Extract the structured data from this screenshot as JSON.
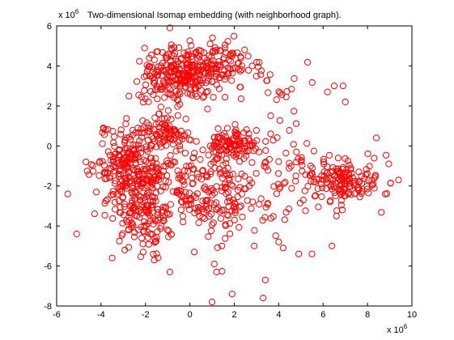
{
  "chart_data": {
    "type": "scatter",
    "title": "Two-dimensional Isomap embedding (with neighborhood graph).",
    "xlabel": "",
    "ylabel": "",
    "x_multiplier": "x 10",
    "y_multiplier": "x 10",
    "multiplier_exponent": "6",
    "xlim": [
      -6,
      10
    ],
    "ylim": [
      -8,
      6
    ],
    "x_ticks": [
      "-6",
      "-4",
      "-2",
      "0",
      "2",
      "4",
      "6",
      "8",
      "10"
    ],
    "y_ticks": [
      "-8",
      "-6",
      "-4",
      "-2",
      "0",
      "2",
      "4",
      "6"
    ],
    "grid": false,
    "legend": "none",
    "marker": "circle-open",
    "color": "#ff0000",
    "clusters": [
      {
        "cx": -0.5,
        "cy": 3.5,
        "sx": 0.9,
        "sy": 0.75,
        "n": 260
      },
      {
        "cx": 1.5,
        "cy": 4.1,
        "sx": 0.9,
        "sy": 0.55,
        "n": 90
      },
      {
        "cx": -2.6,
        "cy": -1.2,
        "sx": 0.85,
        "sy": 1.1,
        "n": 280
      },
      {
        "cx": -1.9,
        "cy": -3.6,
        "sx": 0.7,
        "sy": 0.9,
        "n": 120
      },
      {
        "cx": -1.0,
        "cy": 0.7,
        "sx": 0.55,
        "sy": 0.35,
        "n": 70
      },
      {
        "cx": 2.0,
        "cy": 0.0,
        "sx": 0.6,
        "sy": 0.45,
        "n": 110
      },
      {
        "cx": 1.6,
        "cy": -2.7,
        "sx": 1.0,
        "sy": 1.1,
        "n": 120
      },
      {
        "cx": 0.0,
        "cy": -1.8,
        "sx": 1.0,
        "sy": 1.0,
        "n": 90
      },
      {
        "cx": 7.0,
        "cy": -1.8,
        "sx": 0.9,
        "sy": 0.55,
        "n": 150
      },
      {
        "cx": 4.4,
        "cy": -1.2,
        "sx": 0.7,
        "sy": 0.9,
        "n": 50
      },
      {
        "cx": 4.0,
        "cy": 2.8,
        "sx": 0.6,
        "sy": 0.8,
        "n": 18
      }
    ],
    "outliers": [
      [
        -5.5,
        -2.4
      ],
      [
        -5.1,
        -4.4
      ],
      [
        -3.9,
        0.9
      ],
      [
        -3.8,
        0.8
      ],
      [
        -0.9,
        5.9
      ],
      [
        -0.9,
        -6.3
      ],
      [
        1.1,
        -5.9
      ],
      [
        1.2,
        -6.3
      ],
      [
        1.9,
        -7.4
      ],
      [
        3.4,
        -6.7
      ],
      [
        3.3,
        -7.6
      ],
      [
        1.0,
        -7.8
      ],
      [
        6.5,
        3.0
      ],
      [
        6.9,
        3.0
      ],
      [
        7.0,
        2.2
      ],
      [
        6.2,
        2.7
      ],
      [
        9.4,
        -1.7
      ],
      [
        8.4,
        0.4
      ],
      [
        6.4,
        -5.0
      ],
      [
        5.5,
        -5.4
      ],
      [
        4.9,
        -5.4
      ],
      [
        4.2,
        -5.1
      ],
      [
        4.0,
        -4.8
      ],
      [
        6.6,
        -3.5
      ],
      [
        8.8,
        -2.4
      ],
      [
        -3.5,
        -5.6
      ],
      [
        -1.6,
        -5.7
      ],
      [
        -2.1,
        -5.3
      ],
      [
        0.2,
        -5.3
      ],
      [
        2.9,
        -5.0
      ]
    ],
    "random_seed": 7
  }
}
